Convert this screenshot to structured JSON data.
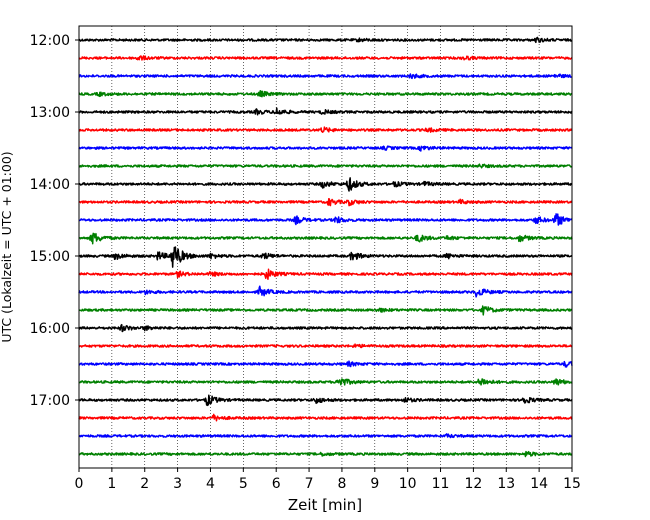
{
  "chart_data": {
    "type": "line",
    "title": "",
    "xlabel": "Zeit  [min]",
    "ylabel": "UTC (Lokalzeit = UTC + 01:00)",
    "xlim": [
      0,
      15
    ],
    "x_ticks": [
      "0",
      "1",
      "2",
      "3",
      "4",
      "5",
      "6",
      "7",
      "8",
      "9",
      "10",
      "11",
      "12",
      "13",
      "14",
      "15"
    ],
    "y_ticks": [
      "12:00",
      "13:00",
      "14:00",
      "15:00",
      "16:00",
      "17:00"
    ],
    "grid": "vertical dotted lines at each minute",
    "trace_interval_minutes": 15,
    "color_cycle": [
      "#000000",
      "#ff0000",
      "#0000ff",
      "#008000"
    ],
    "traces": [
      {
        "start": "12:00",
        "color": "#000000",
        "events": [
          [
            13.9,
            1.0
          ],
          [
            8.5,
            0.6
          ]
        ]
      },
      {
        "start": "12:15",
        "color": "#ff0000",
        "events": [
          [
            1.8,
            1.0
          ],
          [
            11.7,
            0.8
          ]
        ]
      },
      {
        "start": "12:30",
        "color": "#0000ff",
        "events": [
          [
            10.1,
            0.9
          ],
          [
            14.5,
            0.7
          ]
        ]
      },
      {
        "start": "12:45",
        "color": "#008000",
        "events": [
          [
            5.5,
            1.2
          ],
          [
            0.6,
            0.7
          ]
        ]
      },
      {
        "start": "13:00",
        "color": "#000000",
        "events": [
          [
            6.0,
            1.6
          ],
          [
            5.4,
            1.0
          ],
          [
            7.4,
            0.9
          ]
        ]
      },
      {
        "start": "13:15",
        "color": "#ff0000",
        "events": [
          [
            7.4,
            1.1
          ],
          [
            10.6,
            0.8
          ]
        ]
      },
      {
        "start": "13:30",
        "color": "#0000ff",
        "events": [
          [
            10.4,
            1.0
          ],
          [
            9.3,
            0.6
          ]
        ]
      },
      {
        "start": "13:45",
        "color": "#008000",
        "events": [
          [
            12.2,
            0.6
          ]
        ]
      },
      {
        "start": "14:00",
        "color": "#000000",
        "events": [
          [
            8.2,
            3.2
          ],
          [
            7.4,
            1.6
          ],
          [
            9.6,
            1.0
          ],
          [
            10.5,
            0.8
          ]
        ]
      },
      {
        "start": "14:15",
        "color": "#ff0000",
        "events": [
          [
            7.6,
            1.5
          ],
          [
            8.2,
            1.2
          ],
          [
            11.6,
            0.8
          ]
        ]
      },
      {
        "start": "14:30",
        "color": "#0000ff",
        "events": [
          [
            14.5,
            3.0
          ],
          [
            13.9,
            1.5
          ],
          [
            6.6,
            1.6
          ],
          [
            7.8,
            1.5
          ]
        ]
      },
      {
        "start": "14:45",
        "color": "#008000",
        "events": [
          [
            0.4,
            2.8
          ],
          [
            10.3,
            1.8
          ],
          [
            13.4,
            1.5
          ],
          [
            11.2,
            0.7
          ]
        ]
      },
      {
        "start": "15:00",
        "color": "#000000",
        "events": [
          [
            2.85,
            6.5
          ],
          [
            2.4,
            1.8
          ],
          [
            1.1,
            1.4
          ],
          [
            5.6,
            1.3
          ],
          [
            8.3,
            2.0
          ],
          [
            4.0,
            1.0
          ],
          [
            11.2,
            1.0
          ]
        ]
      },
      {
        "start": "15:15",
        "color": "#ff0000",
        "events": [
          [
            5.7,
            2.4
          ],
          [
            3.0,
            1.1
          ],
          [
            4.0,
            0.8
          ]
        ]
      },
      {
        "start": "15:30",
        "color": "#0000ff",
        "events": [
          [
            5.5,
            2.2
          ],
          [
            12.1,
            2.2
          ],
          [
            2.0,
            0.8
          ]
        ]
      },
      {
        "start": "15:45",
        "color": "#008000",
        "events": [
          [
            12.3,
            1.8
          ],
          [
            9.1,
            0.8
          ]
        ]
      },
      {
        "start": "16:00",
        "color": "#000000",
        "events": [
          [
            1.3,
            1.4
          ],
          [
            2.0,
            0.8
          ]
        ]
      },
      {
        "start": "16:15",
        "color": "#ff0000",
        "events": [
          [
            8.4,
            0.6
          ]
        ]
      },
      {
        "start": "16:30",
        "color": "#0000ff",
        "events": [
          [
            14.8,
            1.2
          ],
          [
            8.2,
            0.9
          ]
        ]
      },
      {
        "start": "16:45",
        "color": "#008000",
        "events": [
          [
            7.9,
            2.5
          ],
          [
            12.2,
            2.0
          ],
          [
            14.5,
            1.5
          ]
        ]
      },
      {
        "start": "17:00",
        "color": "#000000",
        "events": [
          [
            3.9,
            2.4
          ],
          [
            7.2,
            1.3
          ],
          [
            13.5,
            1.8
          ],
          [
            9.9,
            1.0
          ]
        ]
      },
      {
        "start": "17:15",
        "color": "#ff0000",
        "events": [
          [
            4.1,
            1.2
          ]
        ]
      },
      {
        "start": "17:30",
        "color": "#0000ff",
        "events": [
          [
            11.2,
            0.6
          ]
        ]
      },
      {
        "start": "17:45",
        "color": "#008000",
        "events": [
          [
            13.6,
            1.0
          ],
          [
            7.4,
            0.6
          ]
        ]
      }
    ]
  }
}
